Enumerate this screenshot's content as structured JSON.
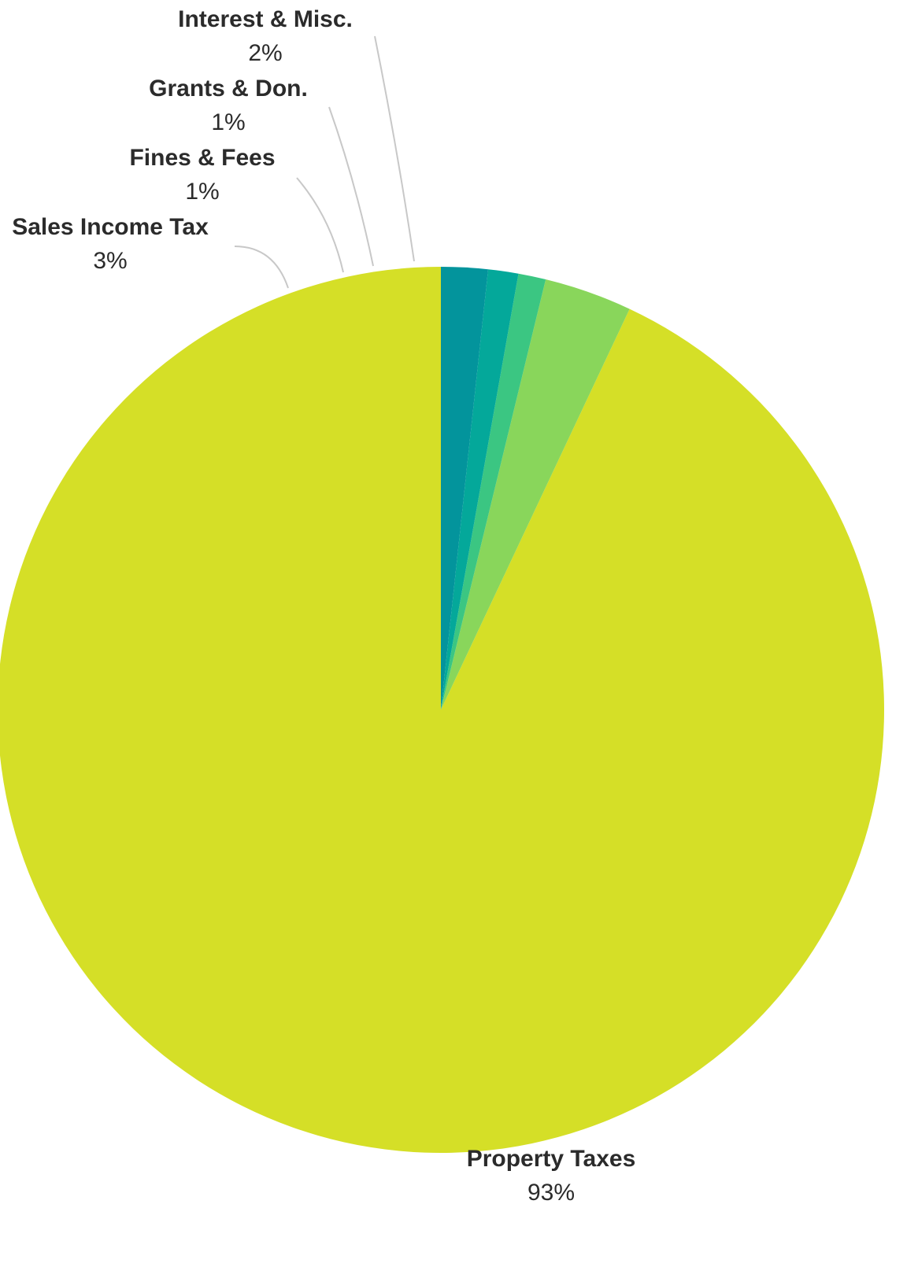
{
  "chart_data": {
    "type": "pie",
    "start_angle_deg": 0,
    "direction": "counterclockwise",
    "slices": [
      {
        "label": "Property Taxes",
        "value_label": "93%",
        "value": 93.0,
        "color": "#D5DF27"
      },
      {
        "label": "Sales Income Tax",
        "value_label": "3%",
        "value": 3.2,
        "color": "#89D65B"
      },
      {
        "label": "Fines & Fees",
        "value_label": "1%",
        "value": 1.0,
        "color": "#3BC682"
      },
      {
        "label": "Grants & Don.",
        "value_label": "1%",
        "value": 1.1,
        "color": "#04A89A"
      },
      {
        "label": "Interest & Misc.",
        "value_label": "2%",
        "value": 1.7,
        "color": "#03949C"
      }
    ],
    "legend": "none"
  }
}
